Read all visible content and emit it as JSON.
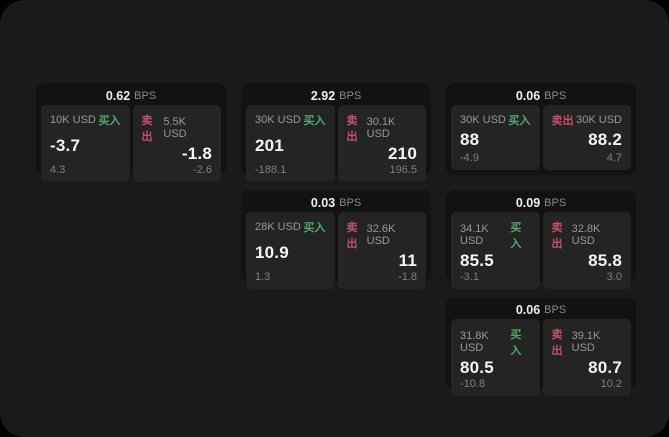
{
  "labels": {
    "bps": "BPS",
    "buy": "买入",
    "sell": "卖出"
  },
  "colors": {
    "background": "#1a1a1a",
    "card": "#121212",
    "panel": "#242424",
    "buy": "#53a86d",
    "sell": "#c4506a",
    "price_text": "#f5f5f5",
    "muted_text": "#989898"
  },
  "cards": [
    {
      "bps": "0.62",
      "buy": {
        "amount": "10K USD",
        "price": "-3.7",
        "sub": "4.3"
      },
      "sell": {
        "amount": "5.5K USD",
        "price": "-1.8",
        "sub": "-2.6"
      }
    },
    {
      "bps": "2.92",
      "buy": {
        "amount": "30K USD",
        "price": "201",
        "sub": "-188.1"
      },
      "sell": {
        "amount": "30.1K USD",
        "price": "210",
        "sub": "196.5"
      }
    },
    {
      "bps": "0.06",
      "buy": {
        "amount": "30K USD",
        "price": "88",
        "sub": "-4.9"
      },
      "sell": {
        "amount": "30K USD",
        "price": "88.2",
        "sub": "4.7"
      }
    },
    {
      "bps": "0.03",
      "buy": {
        "amount": "28K USD",
        "price": "10.9",
        "sub": "1.3"
      },
      "sell": {
        "amount": "32.6K USD",
        "price": "11",
        "sub": "-1.8"
      }
    },
    {
      "bps": "0.09",
      "buy": {
        "amount": "34.1K USD",
        "price": "85.5",
        "sub": "-3.1"
      },
      "sell": {
        "amount": "32.8K USD",
        "price": "85.8",
        "sub": "3.0"
      }
    },
    {
      "bps": "0.06",
      "buy": {
        "amount": "31.8K USD",
        "price": "80.5",
        "sub": "-10.8"
      },
      "sell": {
        "amount": "39.1K USD",
        "price": "80.7",
        "sub": "10.2"
      }
    }
  ]
}
